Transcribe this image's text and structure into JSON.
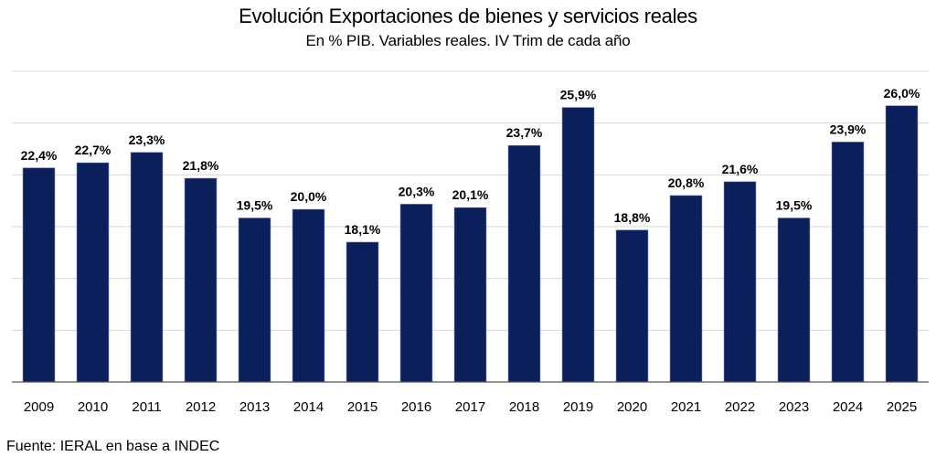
{
  "chart_data": {
    "type": "bar",
    "title": "Evolución Exportaciones de bienes y servicios reales",
    "subtitle": "En % PIB. Variables reales. IV Trim de cada año",
    "xlabel": "",
    "ylabel": "",
    "categories": [
      "2009",
      "2010",
      "2011",
      "2012",
      "2013",
      "2014",
      "2015",
      "2016",
      "2017",
      "2018",
      "2019",
      "2020",
      "2021",
      "2022",
      "2023",
      "2024",
      "2025"
    ],
    "values": [
      22.4,
      22.7,
      23.3,
      21.8,
      19.5,
      20.0,
      18.1,
      20.3,
      20.1,
      23.7,
      25.9,
      18.8,
      20.8,
      21.6,
      19.5,
      23.9,
      26.0
    ],
    "data_labels": [
      "22,4%",
      "22,7%",
      "23,3%",
      "21,8%",
      "19,5%",
      "20,0%",
      "18,1%",
      "20,3%",
      "20,1%",
      "23,7%",
      "25,9%",
      "18,8%",
      "20,8%",
      "21,6%",
      "19,5%",
      "23,9%",
      "26,0%"
    ],
    "ylim": [
      10,
      28
    ],
    "y_gridlines": [
      13,
      16,
      19,
      22,
      25,
      28
    ],
    "y_tick_labels_visible": false,
    "grid": true,
    "legend": "none",
    "bar_color": "#0b1f5b"
  },
  "footer": {
    "source": "Fuente: IERAL en base a INDEC"
  }
}
